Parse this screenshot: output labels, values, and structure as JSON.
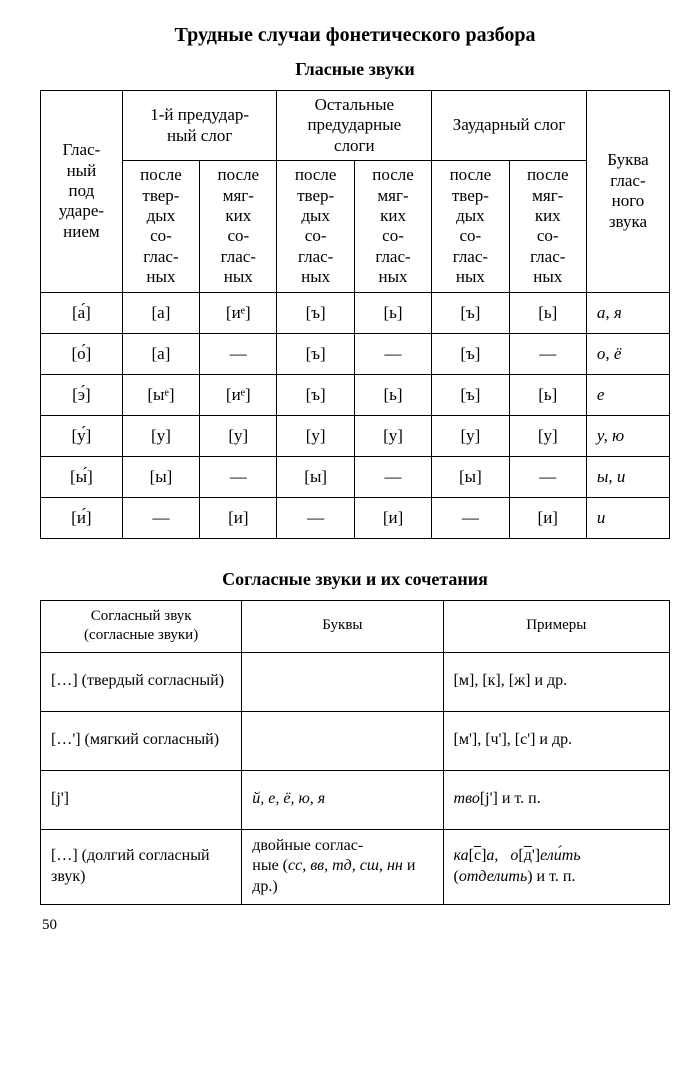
{
  "titles": {
    "main": "Трудные случаи фонетического разбора",
    "vowels": "Гласные звуки",
    "consonants": "Согласные звуки и их сочетания"
  },
  "page_number": "50",
  "vowel_table": {
    "col_left": "Глас-\nный\nпод\nударе-\nнием",
    "col_right": "Буква\nглас-\nного\nзвука",
    "group_headers": [
      "1-й предудар-\nный слог",
      "Остальные\nпредударные\nслоги",
      "Заударный слог"
    ],
    "sub_hard": "после\nтвер-\nдых\nсо-\nглас-\nных",
    "sub_soft": "после\nмяг-\nких\nсо-\nглас-\nных",
    "rows": [
      [
        "[а́]",
        "[а]",
        "[иᵉ]",
        "[ъ]",
        "[ь]",
        "[ъ]",
        "[ь]",
        "а, я"
      ],
      [
        "[о́]",
        "[а]",
        "—",
        "[ъ]",
        "—",
        "[ъ]",
        "—",
        "о, ё"
      ],
      [
        "[э́]",
        "[ыᵉ]",
        "[иᵉ]",
        "[ъ]",
        "[ь]",
        "[ъ]",
        "[ь]",
        "е"
      ],
      [
        "[у́]",
        "[у]",
        "[у]",
        "[у]",
        "[у]",
        "[у]",
        "[у]",
        "у, ю"
      ],
      [
        "[ы́]",
        "[ы]",
        "—",
        "[ы]",
        "—",
        "[ы]",
        "—",
        "ы, и"
      ],
      [
        "[и́]",
        "—",
        "[и]",
        "—",
        "[и]",
        "—",
        "[и]",
        "и"
      ]
    ]
  },
  "consonant_table": {
    "headers": [
      "Согласный звук\n(согласные звуки)",
      "Буквы",
      "Примеры"
    ],
    "rows": [
      {
        "c1": "[…] (твердый согласный)",
        "c2": "",
        "c3": "[м], [к], [ж] и др."
      },
      {
        "c1": "[…'] (мягкий согласный)",
        "c2": "",
        "c3": "[м'], [ч'], [с'] и др."
      },
      {
        "c1": "[j']",
        "c2_html": "<span class='italic'>й, е, ё, ю, я</span>",
        "c3_html": "<span class='italic'>тво</span>[j'] и т. п."
      },
      {
        "c1": "[…] (долгий согласный звук)",
        "c2_html": "двойные соглас-<br>ные (<span class='italic'>сс, вв, тд, сш, нн</span> и др.)",
        "c3_html": "<span class='italic'>ка</span>[<span class='overline'>с</span>]<span class='italic'>а</span>,&nbsp;&nbsp;&nbsp;<span class='italic'>о</span>[<span class='overline'>д</span>']<span class='italic'>ели́ть</span><br>(<span class='italic'>отделить</span>) и т. п."
      }
    ]
  }
}
